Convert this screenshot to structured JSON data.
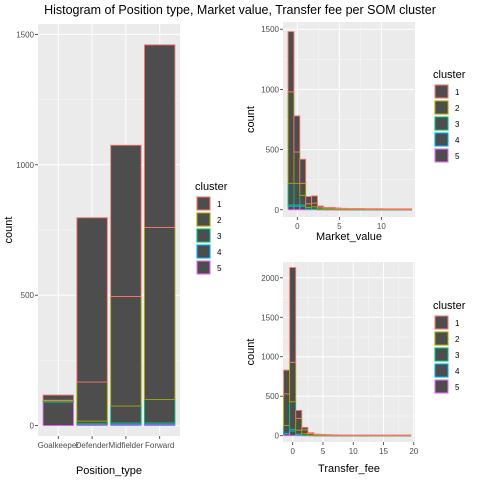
{
  "title": "Histogram of Position type, Market value, Transfer fee per SOM cluster",
  "bar_fill": "#4d4d4d",
  "cluster_colors": [
    "#f8766d",
    "#a3a500",
    "#00bf7d",
    "#00b0f6",
    "#e76bf3"
  ],
  "chart_data": [
    {
      "type": "bar",
      "xlabel": "Position_type",
      "ylabel": "count",
      "legend_title": "cluster",
      "legend_labels": [
        "1",
        "2",
        "3",
        "4",
        "5"
      ],
      "legend_position": "right",
      "grid": true,
      "categories": [
        "Goalkeeper",
        "Defender",
        "Midfielder",
        "Forward"
      ],
      "ylim": [
        -40,
        1540
      ],
      "yticks": [
        0,
        500,
        1000,
        1500
      ],
      "series": [
        {
          "name": "1",
          "values": [
            20,
            630,
            580,
            700
          ]
        },
        {
          "name": "2",
          "values": [
            2,
            150,
            420,
            660
          ]
        },
        {
          "name": "3",
          "values": [
            5,
            10,
            65,
            90
          ]
        },
        {
          "name": "4",
          "values": [
            0,
            2,
            5,
            5
          ]
        },
        {
          "name": "5",
          "values": [
            90,
            5,
            5,
            5
          ]
        }
      ],
      "stacked": true
    },
    {
      "type": "bar",
      "xlabel": "Market_value",
      "ylabel": "count",
      "legend_title": "cluster",
      "legend_labels": [
        "1",
        "2",
        "3",
        "4",
        "5"
      ],
      "legend_position": "right",
      "grid": true,
      "xlim": [
        -1.7,
        14.0
      ],
      "ylim": [
        -60,
        1560
      ],
      "xticks": [
        0,
        5,
        10
      ],
      "yticks": [
        0,
        500,
        1000,
        1500
      ],
      "bin_edges": [
        -1.1,
        -0.4,
        0.3,
        1.0,
        1.7,
        2.4,
        3.1,
        3.8,
        4.5,
        5.2,
        5.9,
        6.6,
        7.3,
        8.0,
        8.7,
        9.4,
        10.1,
        10.8,
        11.5,
        12.2,
        12.9,
        13.6
      ],
      "series": [
        {
          "name": "1",
          "values": [
            500,
            300,
            200,
            60,
            60,
            10,
            5,
            5,
            3,
            2,
            2,
            2,
            2,
            2,
            2,
            2,
            2,
            2,
            2,
            2,
            2
          ]
        },
        {
          "name": "2",
          "values": [
            760,
            260,
            100,
            30,
            30,
            15,
            10,
            10,
            8,
            6,
            5,
            5,
            5,
            4,
            4,
            4,
            3,
            3,
            3,
            3,
            3
          ]
        },
        {
          "name": "3",
          "values": [
            180,
            180,
            80,
            15,
            20,
            5,
            3,
            3,
            2,
            2,
            1,
            1,
            1,
            1,
            1,
            1,
            1,
            1,
            1,
            1,
            1
          ]
        },
        {
          "name": "4",
          "values": [
            10,
            10,
            10,
            0,
            0,
            0,
            0,
            0,
            0,
            0,
            0,
            0,
            0,
            0,
            0,
            0,
            0,
            0,
            0,
            0,
            0
          ]
        },
        {
          "name": "5",
          "values": [
            30,
            30,
            30,
            5,
            5,
            2,
            2,
            2,
            2,
            2,
            2,
            2,
            2,
            2,
            2,
            2,
            2,
            2,
            2,
            2,
            2
          ]
        }
      ],
      "stacked": true
    },
    {
      "type": "bar",
      "xlabel": "Transfer_fee",
      "ylabel": "count",
      "legend_title": "cluster",
      "legend_labels": [
        "1",
        "2",
        "3",
        "4",
        "5"
      ],
      "legend_position": "right",
      "grid": true,
      "xlim": [
        -1.6,
        20.2
      ],
      "ylim": [
        -80,
        2200
      ],
      "xticks": [
        0,
        5,
        10,
        15,
        20
      ],
      "yticks": [
        0,
        500,
        1000,
        1500,
        2000
      ],
      "bin_edges": [
        -1.5,
        -0.5,
        0.5,
        1.5,
        2.5,
        3.5,
        4.5,
        5.5,
        6.5,
        7.5,
        8.5,
        9.5,
        10.5,
        11.5,
        12.5,
        13.5,
        14.5,
        15.5,
        16.5,
        17.5,
        18.5,
        19.5
      ],
      "series": [
        {
          "name": "1",
          "values": [
            300,
            1200,
            100,
            30,
            10,
            5,
            5,
            3,
            3,
            2,
            2,
            2,
            2,
            2,
            2,
            2,
            2,
            2,
            2,
            2,
            2
          ]
        },
        {
          "name": "2",
          "values": [
            400,
            500,
            150,
            50,
            20,
            10,
            8,
            6,
            5,
            4,
            4,
            3,
            3,
            3,
            3,
            3,
            3,
            3,
            3,
            3,
            3
          ]
        },
        {
          "name": "3",
          "values": [
            100,
            350,
            50,
            20,
            5,
            3,
            2,
            2,
            1,
            1,
            1,
            1,
            1,
            1,
            1,
            1,
            1,
            1,
            1,
            1,
            1
          ]
        },
        {
          "name": "4",
          "values": [
            5,
            20,
            5,
            0,
            0,
            0,
            0,
            0,
            0,
            0,
            0,
            0,
            0,
            0,
            0,
            0,
            0,
            0,
            0,
            0,
            0
          ]
        },
        {
          "name": "5",
          "values": [
            25,
            60,
            15,
            5,
            3,
            2,
            2,
            2,
            2,
            2,
            2,
            2,
            2,
            2,
            2,
            2,
            2,
            2,
            2,
            2,
            2
          ]
        }
      ],
      "stacked": true
    }
  ]
}
